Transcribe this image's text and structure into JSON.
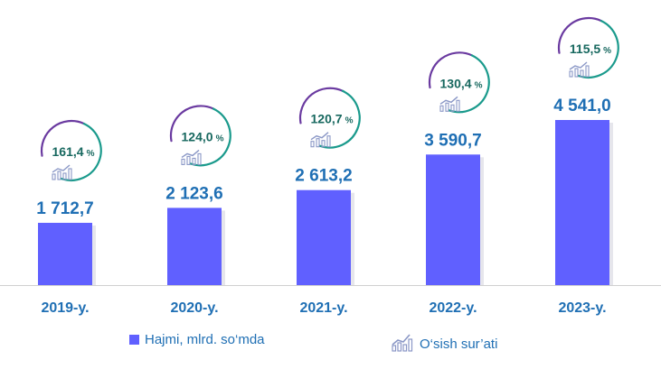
{
  "chart_data": {
    "type": "bar",
    "categories": [
      "2019-y.",
      "2020-y.",
      "2021-y.",
      "2022-y.",
      "2023-y."
    ],
    "series": [
      {
        "name": "Hajmi, mlrd. so‘mda",
        "values": [
          1712.7,
          2123.6,
          2613.2,
          3590.7,
          4541.0
        ],
        "labels": [
          "1 712,7",
          "2 123,6",
          "2 613,2",
          "3 590,7",
          "4 541,0"
        ]
      },
      {
        "name": "O‘sish sur’ati",
        "values": [
          161.4,
          124.0,
          120.7,
          130.4,
          115.5
        ],
        "labels": [
          "161,4",
          "124,0",
          "120,7",
          "130,4",
          "115,5"
        ],
        "unit": "%"
      }
    ],
    "ylim": [
      0,
      4541.0
    ],
    "grid": false,
    "legend_position": "bottom",
    "colors": {
      "bar": "#6060ff",
      "value_text": "#1f6fb4",
      "growth_text": "#17685f",
      "ring_teal": "#1a9a8c",
      "ring_purple": "#6a3aa0",
      "icon": "#8a97c6"
    }
  },
  "legend": {
    "bar_label": "Hajmi, mlrd. so‘mda",
    "growth_label": "O‘sish sur’ati",
    "growth_icon": "bar-growth-chart-icon"
  }
}
